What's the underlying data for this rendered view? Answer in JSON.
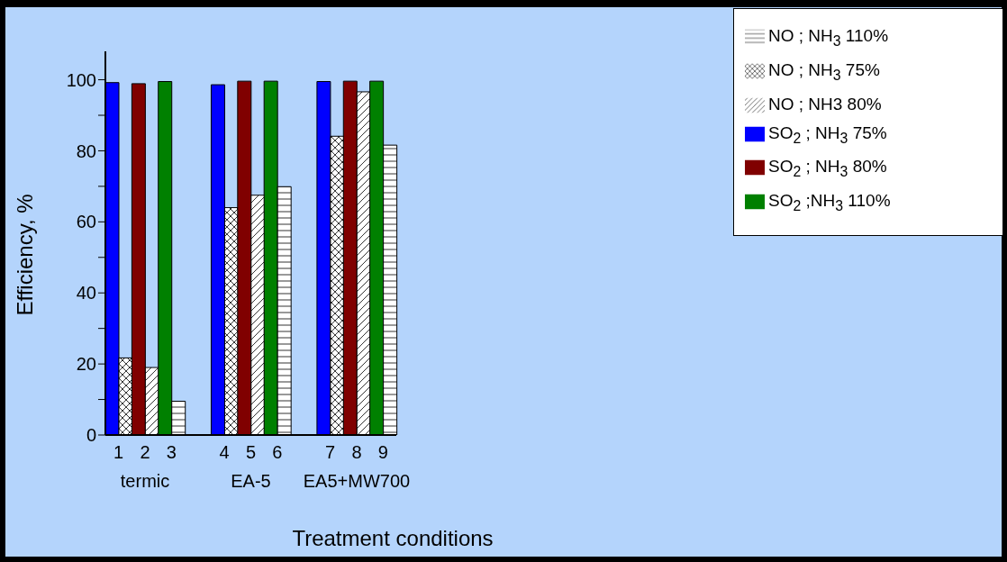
{
  "chart_data": {
    "type": "bar",
    "xlabel": "Treatment conditions",
    "ylabel": "Efficiency, %",
    "categories": [
      "1",
      "2",
      "3",
      "4",
      "5",
      "6",
      "7",
      "8",
      "9"
    ],
    "annotations": [
      "termic",
      "EA-5",
      "EA5+MW700"
    ],
    "series": [
      {
        "name": "SO$_{2}$ ; NH$_{3}$ 75%",
        "color": "#0000ff",
        "values": [
          99.2,
          null,
          null,
          98.6,
          null,
          null,
          99.5,
          null,
          null
        ]
      },
      {
        "name": "NO ; NH$_{3}$ 75%",
        "color": "#000000",
        "values": [
          21.7,
          null,
          null,
          64,
          null,
          null,
          84.1,
          null,
          null
        ]
      },
      {
        "name": "SO$_{2}$ ; NH$_{3}$ 80%",
        "color": "#800000",
        "values": [
          null,
          98.9,
          null,
          null,
          99.6,
          null,
          null,
          99.6,
          null
        ]
      },
      {
        "name": "NO ; NH3 80%",
        "color": "#000000",
        "values": [
          null,
          19,
          null,
          null,
          67.5,
          null,
          null,
          96.6,
          null
        ]
      },
      {
        "name": "SO$_{2}$ ;NH$_{3}$ 110%",
        "color": "#008000",
        "values": [
          null,
          null,
          99.5,
          null,
          null,
          99.6,
          null,
          null,
          99.6
        ]
      },
      {
        "name": "NO ; NH$_{3}$ 110%",
        "color": "#000000",
        "values": [
          null,
          null,
          9.5,
          null,
          null,
          69.9,
          null,
          null,
          81.6
        ]
      }
    ],
    "ylim": [
      0,
      108
    ],
    "yticks": [
      0,
      {
        "value": 10,
        "label": null
      },
      20,
      {
        "value": 30,
        "label": null
      },
      40,
      {
        "value": 50,
        "label": null
      },
      60,
      {
        "value": 70,
        "label": null
      },
      80,
      {
        "value": 90,
        "label": null
      },
      100
    ],
    "grid": false,
    "legend": "top right"
  }
}
